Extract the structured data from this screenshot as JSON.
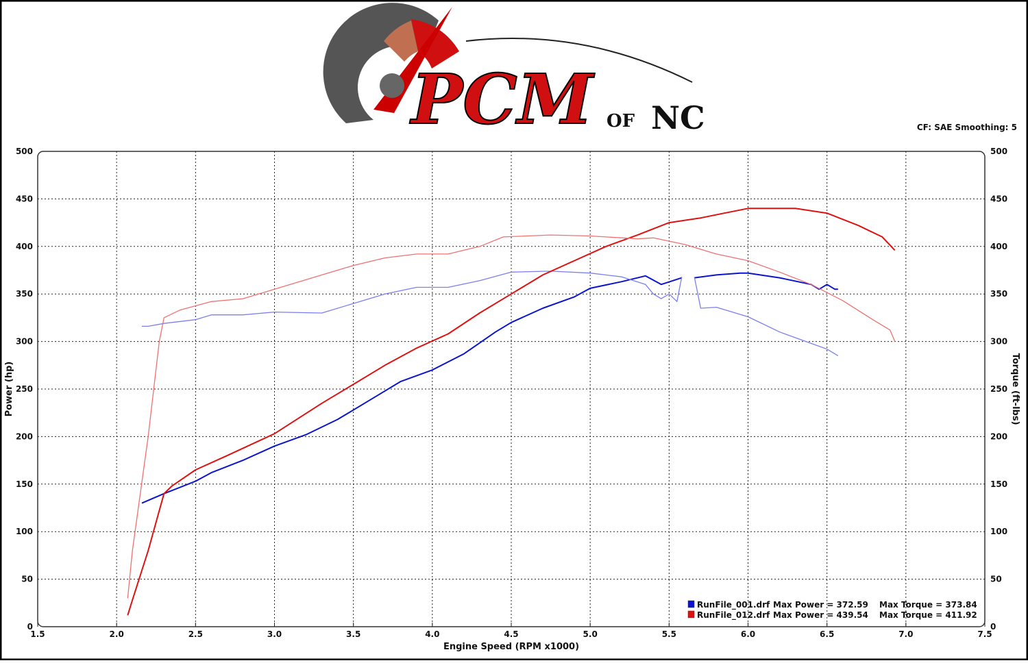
{
  "logo": {
    "main": "PCM",
    "of": "OF",
    "nc": "NC"
  },
  "header_note": "CF: SAE  Smoothing: 5",
  "chart_data": {
    "type": "line",
    "xlabel": "Engine Speed (RPM x1000)",
    "ylabel": "Power (hp)",
    "y2label": "Torque (ft-lbs)",
    "xlim": [
      1.5,
      7.5
    ],
    "xticks": [
      1.5,
      {
        "value": 2,
        "label": "2.0"
      },
      2.5,
      {
        "value": 3,
        "label": "3.0"
      },
      3.5,
      {
        "value": 4,
        "label": "4.0"
      },
      4.5,
      {
        "value": 5,
        "label": "5.0"
      },
      5.5,
      {
        "value": 6,
        "label": "6.0"
      },
      6.5,
      {
        "value": 7,
        "label": "7.0"
      },
      7.5
    ],
    "ylim": [
      0,
      500
    ],
    "yticks": [
      0,
      50,
      100,
      150,
      200,
      250,
      300,
      350,
      400,
      450,
      500
    ],
    "y2lim": [
      0,
      500
    ],
    "y2ticks": [
      0,
      50,
      100,
      150,
      200,
      250,
      300,
      350,
      400,
      450,
      500
    ],
    "grid": true,
    "legend": "lower right",
    "series": [
      {
        "name": "RunFile_001.drf",
        "max_label": "Max Power = 372.59",
        "color": "#0a14d0",
        "width": 2,
        "x": [
          2.16,
          2.3,
          2.5,
          2.6,
          2.8,
          3.0,
          3.2,
          3.4,
          3.6,
          3.8,
          4.0,
          4.2,
          4.4,
          4.5,
          4.7,
          4.9,
          5.0,
          5.2,
          5.35,
          5.45,
          5.58,
          5.62,
          5.66,
          5.8,
          5.95,
          6.0,
          6.2,
          6.4,
          6.45,
          6.5,
          6.55,
          6.57
        ],
        "values": [
          130,
          140,
          153,
          162,
          175,
          190,
          202,
          218,
          238,
          258,
          270,
          287,
          310,
          320,
          335,
          347,
          356,
          363,
          369,
          360,
          367,
          null,
          367,
          370,
          372,
          372,
          367,
          360,
          355,
          360,
          355,
          355
        ]
      },
      {
        "max_label": "Max Torque = 373.84",
        "color": "#7a7ef0",
        "width": 1.3,
        "axis": "y2",
        "x": [
          2.16,
          2.2,
          2.3,
          2.5,
          2.6,
          2.8,
          3.0,
          3.3,
          3.5,
          3.7,
          3.9,
          4.1,
          4.3,
          4.5,
          4.75,
          5.0,
          5.2,
          5.35,
          5.4,
          5.45,
          5.5,
          5.55,
          5.58,
          5.62,
          5.66,
          5.7,
          5.8,
          6.0,
          6.2,
          6.4,
          6.5,
          6.57
        ],
        "values": [
          316,
          316,
          319,
          323,
          328,
          328,
          331,
          330,
          340,
          350,
          357,
          357,
          364,
          373,
          374,
          372,
          368,
          360,
          350,
          345,
          350,
          342,
          368,
          null,
          368,
          335,
          336,
          326,
          310,
          298,
          292,
          285
        ]
      },
      {
        "name": "RunFile_012.drf",
        "max_label": "Max Power = 439.54",
        "color": "#e01010",
        "width": 2,
        "x": [
          2.07,
          2.1,
          2.2,
          2.3,
          2.35,
          2.5,
          2.7,
          3.0,
          3.3,
          3.5,
          3.7,
          3.9,
          4.1,
          4.3,
          4.5,
          4.7,
          4.9,
          5.1,
          5.3,
          5.5,
          5.7,
          5.85,
          6.0,
          6.3,
          6.5,
          6.7,
          6.85,
          6.93
        ],
        "values": [
          12,
          28,
          80,
          140,
          148,
          165,
          180,
          203,
          235,
          255,
          275,
          293,
          308,
          330,
          350,
          370,
          385,
          400,
          412,
          425,
          430,
          435,
          440,
          440,
          435,
          422,
          410,
          396
        ]
      },
      {
        "max_label": "Max Torque = 411.92",
        "color": "#f07070",
        "width": 1.3,
        "axis": "y2",
        "x": [
          2.07,
          2.1,
          2.2,
          2.27,
          2.3,
          2.4,
          2.6,
          2.8,
          3.0,
          3.3,
          3.5,
          3.7,
          3.9,
          4.1,
          4.3,
          4.45,
          4.75,
          5.0,
          5.3,
          5.4,
          5.6,
          5.8,
          6.0,
          6.2,
          6.4,
          6.6,
          6.8,
          6.9,
          6.93
        ],
        "values": [
          30,
          80,
          200,
          300,
          325,
          333,
          342,
          345,
          355,
          370,
          380,
          388,
          392,
          392,
          400,
          410,
          412,
          411,
          408,
          409,
          402,
          392,
          385,
          373,
          360,
          343,
          322,
          312,
          300
        ]
      }
    ]
  }
}
